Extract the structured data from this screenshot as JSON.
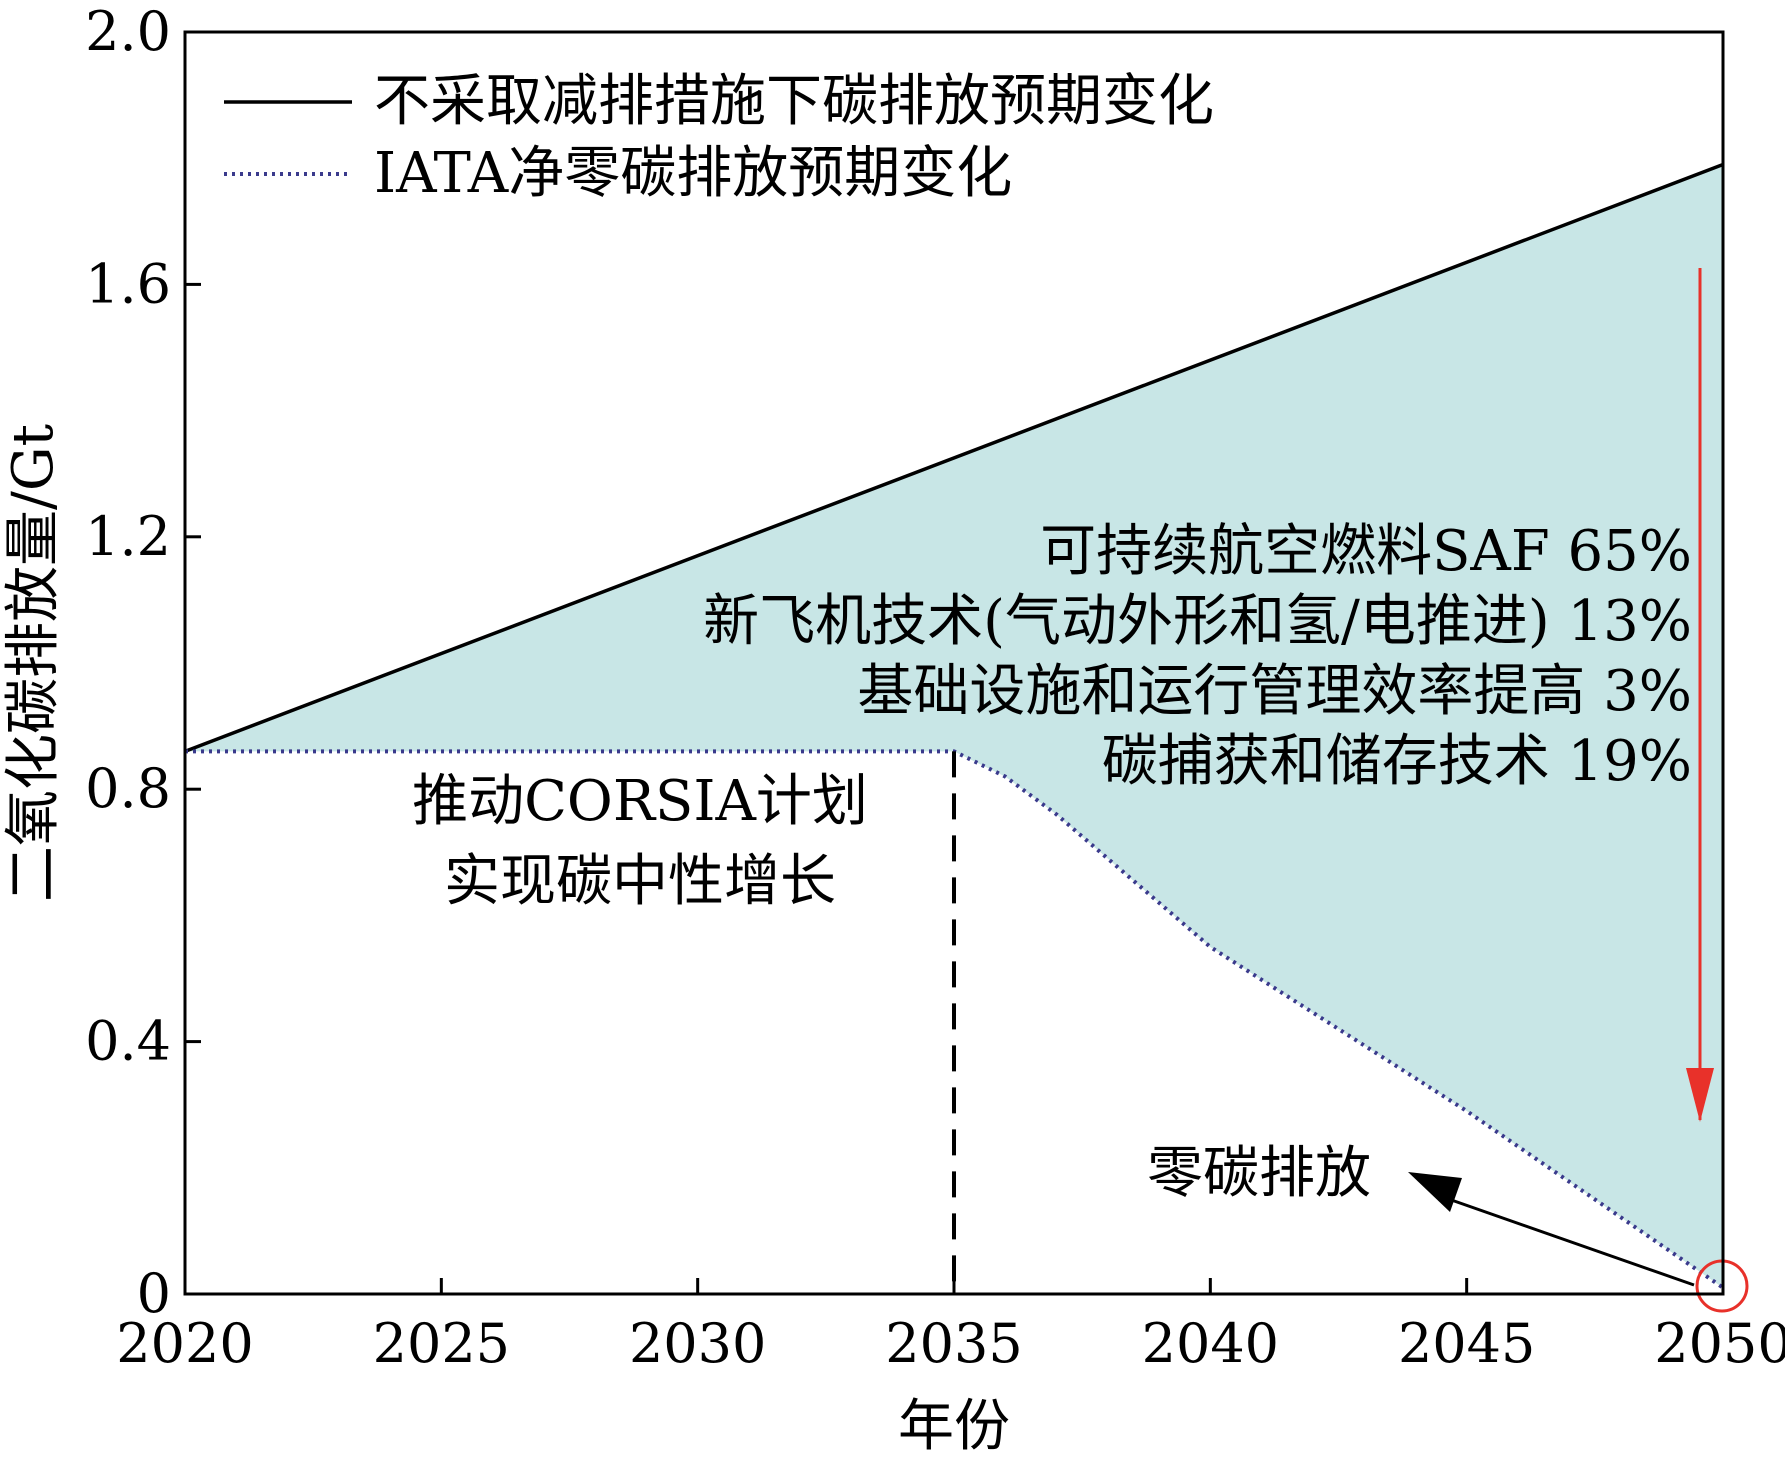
{
  "chart_data": {
    "type": "line",
    "xlabel": "年份",
    "ylabel": "二氧化碳排放量/Gt",
    "xlim": [
      2020,
      2050
    ],
    "ylim": [
      0,
      2.0
    ],
    "x_ticks": [
      2020,
      2025,
      2030,
      2035,
      2040,
      2045,
      2050
    ],
    "y_ticks": [
      {
        "value": 0,
        "label": "0"
      },
      {
        "value": 0.4,
        "label": "0.4"
      },
      {
        "value": 0.8,
        "label": "0.8"
      },
      {
        "value": 1.2,
        "label": "1.2"
      },
      {
        "value": 1.6,
        "label": "1.6"
      },
      {
        "value": 2.0,
        "label": "2.0"
      }
    ],
    "series": [
      {
        "name": "不采取减排措施下碳排放预期变化",
        "style": "solid",
        "color": "#000000",
        "points": [
          [
            2020,
            0.86
          ],
          [
            2050,
            1.79
          ]
        ]
      },
      {
        "name": "IATA净零碳排放预期变化",
        "style": "dotted",
        "color": "#3a3a8c",
        "points": [
          [
            2020,
            0.86
          ],
          [
            2035,
            0.86
          ],
          [
            2036,
            0.82
          ],
          [
            2037,
            0.76
          ],
          [
            2038,
            0.69
          ],
          [
            2039,
            0.62
          ],
          [
            2040,
            0.55
          ],
          [
            2045,
            0.29
          ],
          [
            2050,
            0.01
          ]
        ]
      }
    ],
    "fill_between": {
      "color": "#c8e6e6",
      "upper": "不采取减排措施下碳排放预期变化",
      "lower": "IATA净零碳排放预期变化"
    },
    "vertical_marker": {
      "x": 2035,
      "style": "dashed"
    },
    "legend_position": "top-left",
    "annotations": {
      "corsia": [
        "推动CORSIA计划",
        "实现碳中性增长"
      ],
      "measures": [
        "可持续航空燃料SAF 65%",
        "新飞机技术(气动外形和氢/电推进) 13%",
        "基础设施和运行管理效率提高 3%",
        "碳捕获和储存技术 19%"
      ],
      "zero": "零碳排放"
    },
    "arrow_color": "#e8312a"
  }
}
